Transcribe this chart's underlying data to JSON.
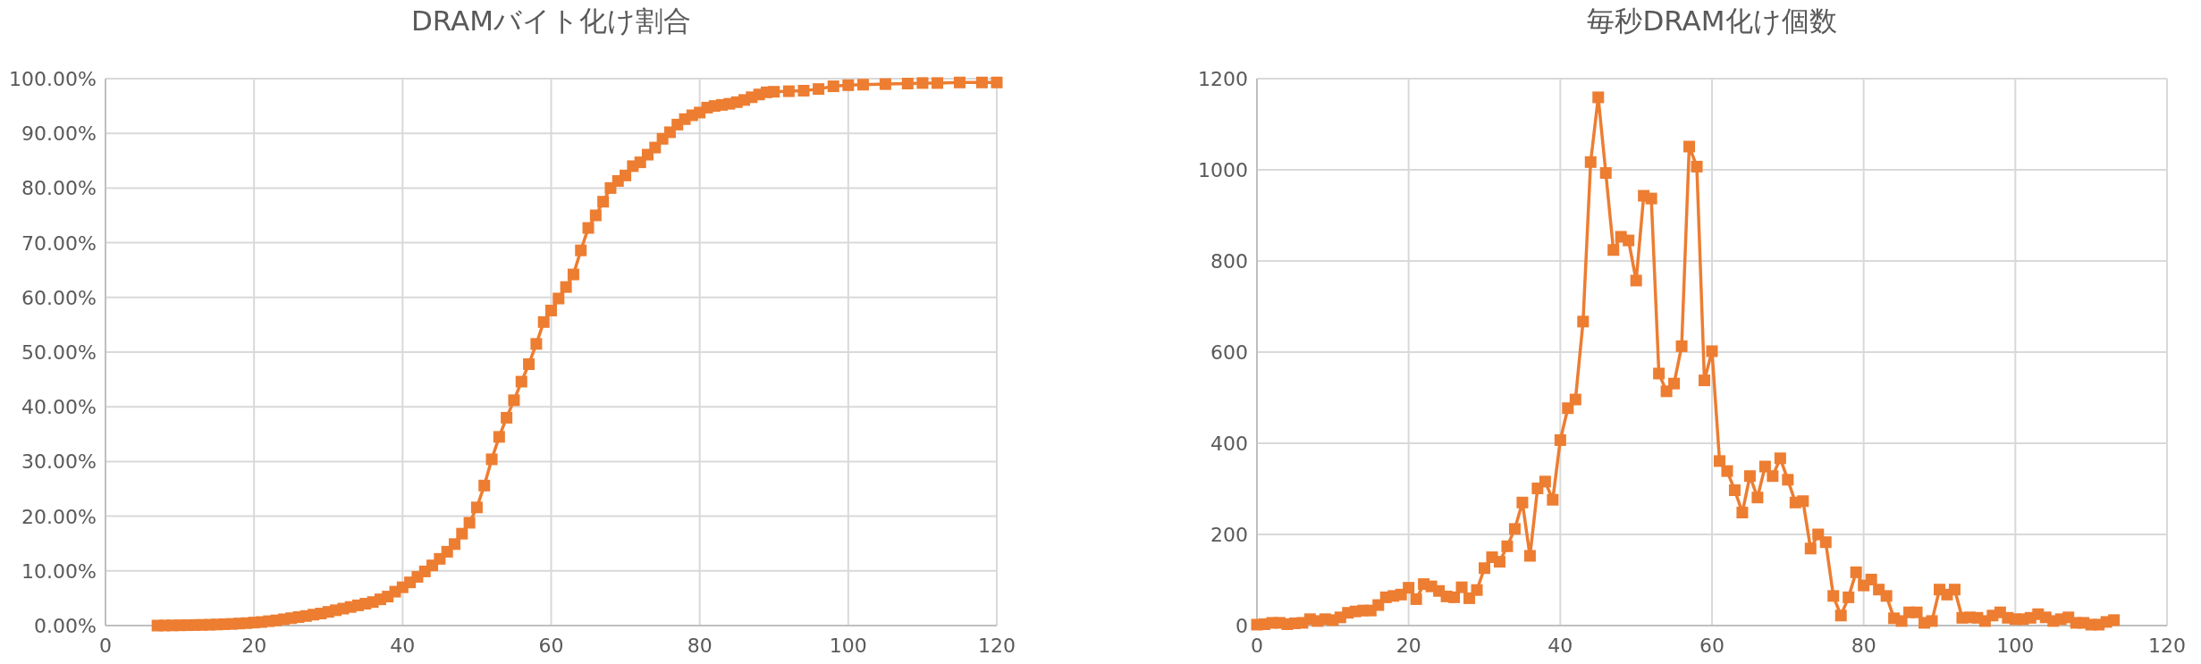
{
  "chart_data": [
    {
      "type": "line",
      "title": "DRAMバイト化け割合",
      "grid": true,
      "marker": "square",
      "line_style": "solid",
      "xlim": [
        0,
        120
      ],
      "xticks": [
        0,
        20,
        40,
        60,
        80,
        100,
        120
      ],
      "ylim": [
        0,
        100
      ],
      "yticks": [
        {
          "value": 0,
          "label": "0.00%"
        },
        {
          "value": 10,
          "label": "10.00%"
        },
        {
          "value": 20,
          "label": "20.00%"
        },
        {
          "value": 30,
          "label": "30.00%"
        },
        {
          "value": 40,
          "label": "40.00%"
        },
        {
          "value": 50,
          "label": "50.00%"
        },
        {
          "value": 60,
          "label": "60.00%"
        },
        {
          "value": 70,
          "label": "70.00%"
        },
        {
          "value": 80,
          "label": "80.00%"
        },
        {
          "value": 90,
          "label": "90.00%"
        },
        {
          "value": 100,
          "label": "100.00%"
        }
      ],
      "x": [
        7,
        8,
        9,
        10,
        11,
        12,
        13,
        14,
        15,
        16,
        17,
        18,
        19,
        20,
        21,
        22,
        23,
        24,
        25,
        26,
        27,
        28,
        29,
        30,
        31,
        32,
        33,
        34,
        35,
        36,
        37,
        38,
        39,
        40,
        41,
        42,
        43,
        44,
        45,
        46,
        47,
        48,
        49,
        50,
        51,
        52,
        53,
        54,
        55,
        56,
        57,
        58,
        59,
        60,
        61,
        62,
        63,
        64,
        65,
        66,
        67,
        68,
        69,
        70,
        71,
        72,
        73,
        74,
        75,
        76,
        77,
        78,
        79,
        80,
        81,
        82,
        83,
        84,
        85,
        86,
        87,
        88,
        89,
        90,
        92,
        94,
        96,
        98,
        100,
        102,
        105,
        108,
        110,
        112,
        115,
        118,
        120
      ],
      "series": [
        {
          "color": "#ed7d31",
          "values": [
            0.0,
            0.02,
            0.03,
            0.05,
            0.07,
            0.1,
            0.12,
            0.15,
            0.2,
            0.25,
            0.3,
            0.38,
            0.45,
            0.55,
            0.65,
            0.8,
            0.95,
            1.15,
            1.35,
            1.55,
            1.75,
            2.0,
            2.2,
            2.5,
            2.8,
            3.1,
            3.4,
            3.7,
            4.0,
            4.3,
            4.8,
            5.3,
            6.2,
            7.0,
            7.9,
            8.9,
            9.9,
            11.0,
            12.2,
            13.5,
            14.9,
            16.8,
            18.8,
            21.6,
            25.6,
            30.4,
            34.5,
            38.0,
            41.2,
            44.6,
            47.8,
            51.5,
            55.5,
            57.6,
            59.8,
            61.9,
            64.2,
            68.6,
            72.7,
            75.0,
            77.5,
            80.0,
            81.3,
            82.3,
            84.0,
            84.7,
            86.1,
            87.4,
            89.0,
            90.2,
            91.6,
            92.6,
            93.3,
            93.8,
            94.7,
            95.0,
            95.2,
            95.4,
            95.7,
            96.1,
            96.6,
            97.1,
            97.5,
            97.6,
            97.7,
            97.8,
            98.1,
            98.6,
            98.8,
            98.9,
            99.0,
            99.1,
            99.2,
            99.2,
            99.3,
            99.3,
            99.3
          ]
        }
      ]
    },
    {
      "type": "line",
      "title": "毎秒DRAM化け個数",
      "grid": true,
      "marker": "square",
      "line_style": "solid",
      "xlim": [
        0,
        120
      ],
      "xticks": [
        0,
        20,
        40,
        60,
        80,
        100,
        120
      ],
      "ylim": [
        0,
        1200
      ],
      "yticks": [
        0,
        200,
        400,
        600,
        800,
        1000,
        1200
      ],
      "x": [
        0,
        1,
        2,
        3,
        4,
        5,
        6,
        7,
        8,
        9,
        10,
        11,
        12,
        13,
        14,
        15,
        16,
        17,
        18,
        19,
        20,
        21,
        22,
        23,
        24,
        25,
        26,
        27,
        28,
        29,
        30,
        31,
        32,
        33,
        34,
        35,
        36,
        37,
        38,
        39,
        40,
        41,
        42,
        43,
        44,
        45,
        46,
        47,
        48,
        49,
        50,
        51,
        52,
        53,
        54,
        55,
        56,
        57,
        58,
        59,
        60,
        61,
        62,
        63,
        64,
        65,
        66,
        67,
        68,
        69,
        70,
        71,
        72,
        73,
        74,
        75,
        76,
        77,
        78,
        79,
        80,
        81,
        82,
        83,
        84,
        85,
        86,
        87,
        88,
        89,
        90,
        91,
        92,
        93,
        94,
        95,
        96,
        97,
        98,
        99,
        100,
        101,
        102,
        103,
        104,
        105,
        106,
        107,
        108,
        109,
        110,
        111,
        112,
        113
      ],
      "series": [
        {
          "color": "#ed7d31",
          "values": [
            2,
            3,
            6,
            6,
            3,
            5,
            6,
            14,
            10,
            14,
            12,
            18,
            28,
            31,
            33,
            33,
            45,
            62,
            65,
            68,
            83,
            58,
            91,
            86,
            76,
            64,
            62,
            84,
            60,
            78,
            126,
            150,
            140,
            174,
            212,
            270,
            153,
            301,
            316,
            276,
            407,
            477,
            496,
            667,
            1017,
            1159,
            993,
            824,
            853,
            845,
            757,
            943,
            937,
            553,
            514,
            531,
            613,
            1051,
            1007,
            538,
            602,
            361,
            339,
            297,
            248,
            328,
            281,
            349,
            328,
            367,
            320,
            270,
            273,
            169,
            200,
            183,
            65,
            22,
            62,
            117,
            88,
            101,
            79,
            65,
            16,
            10,
            29,
            29,
            6,
            10,
            79,
            68,
            79,
            17,
            18,
            17,
            10,
            22,
            29,
            17,
            14,
            14,
            17,
            25,
            18,
            10,
            14,
            18,
            6,
            6,
            2,
            2,
            8,
            12
          ]
        }
      ]
    }
  ]
}
